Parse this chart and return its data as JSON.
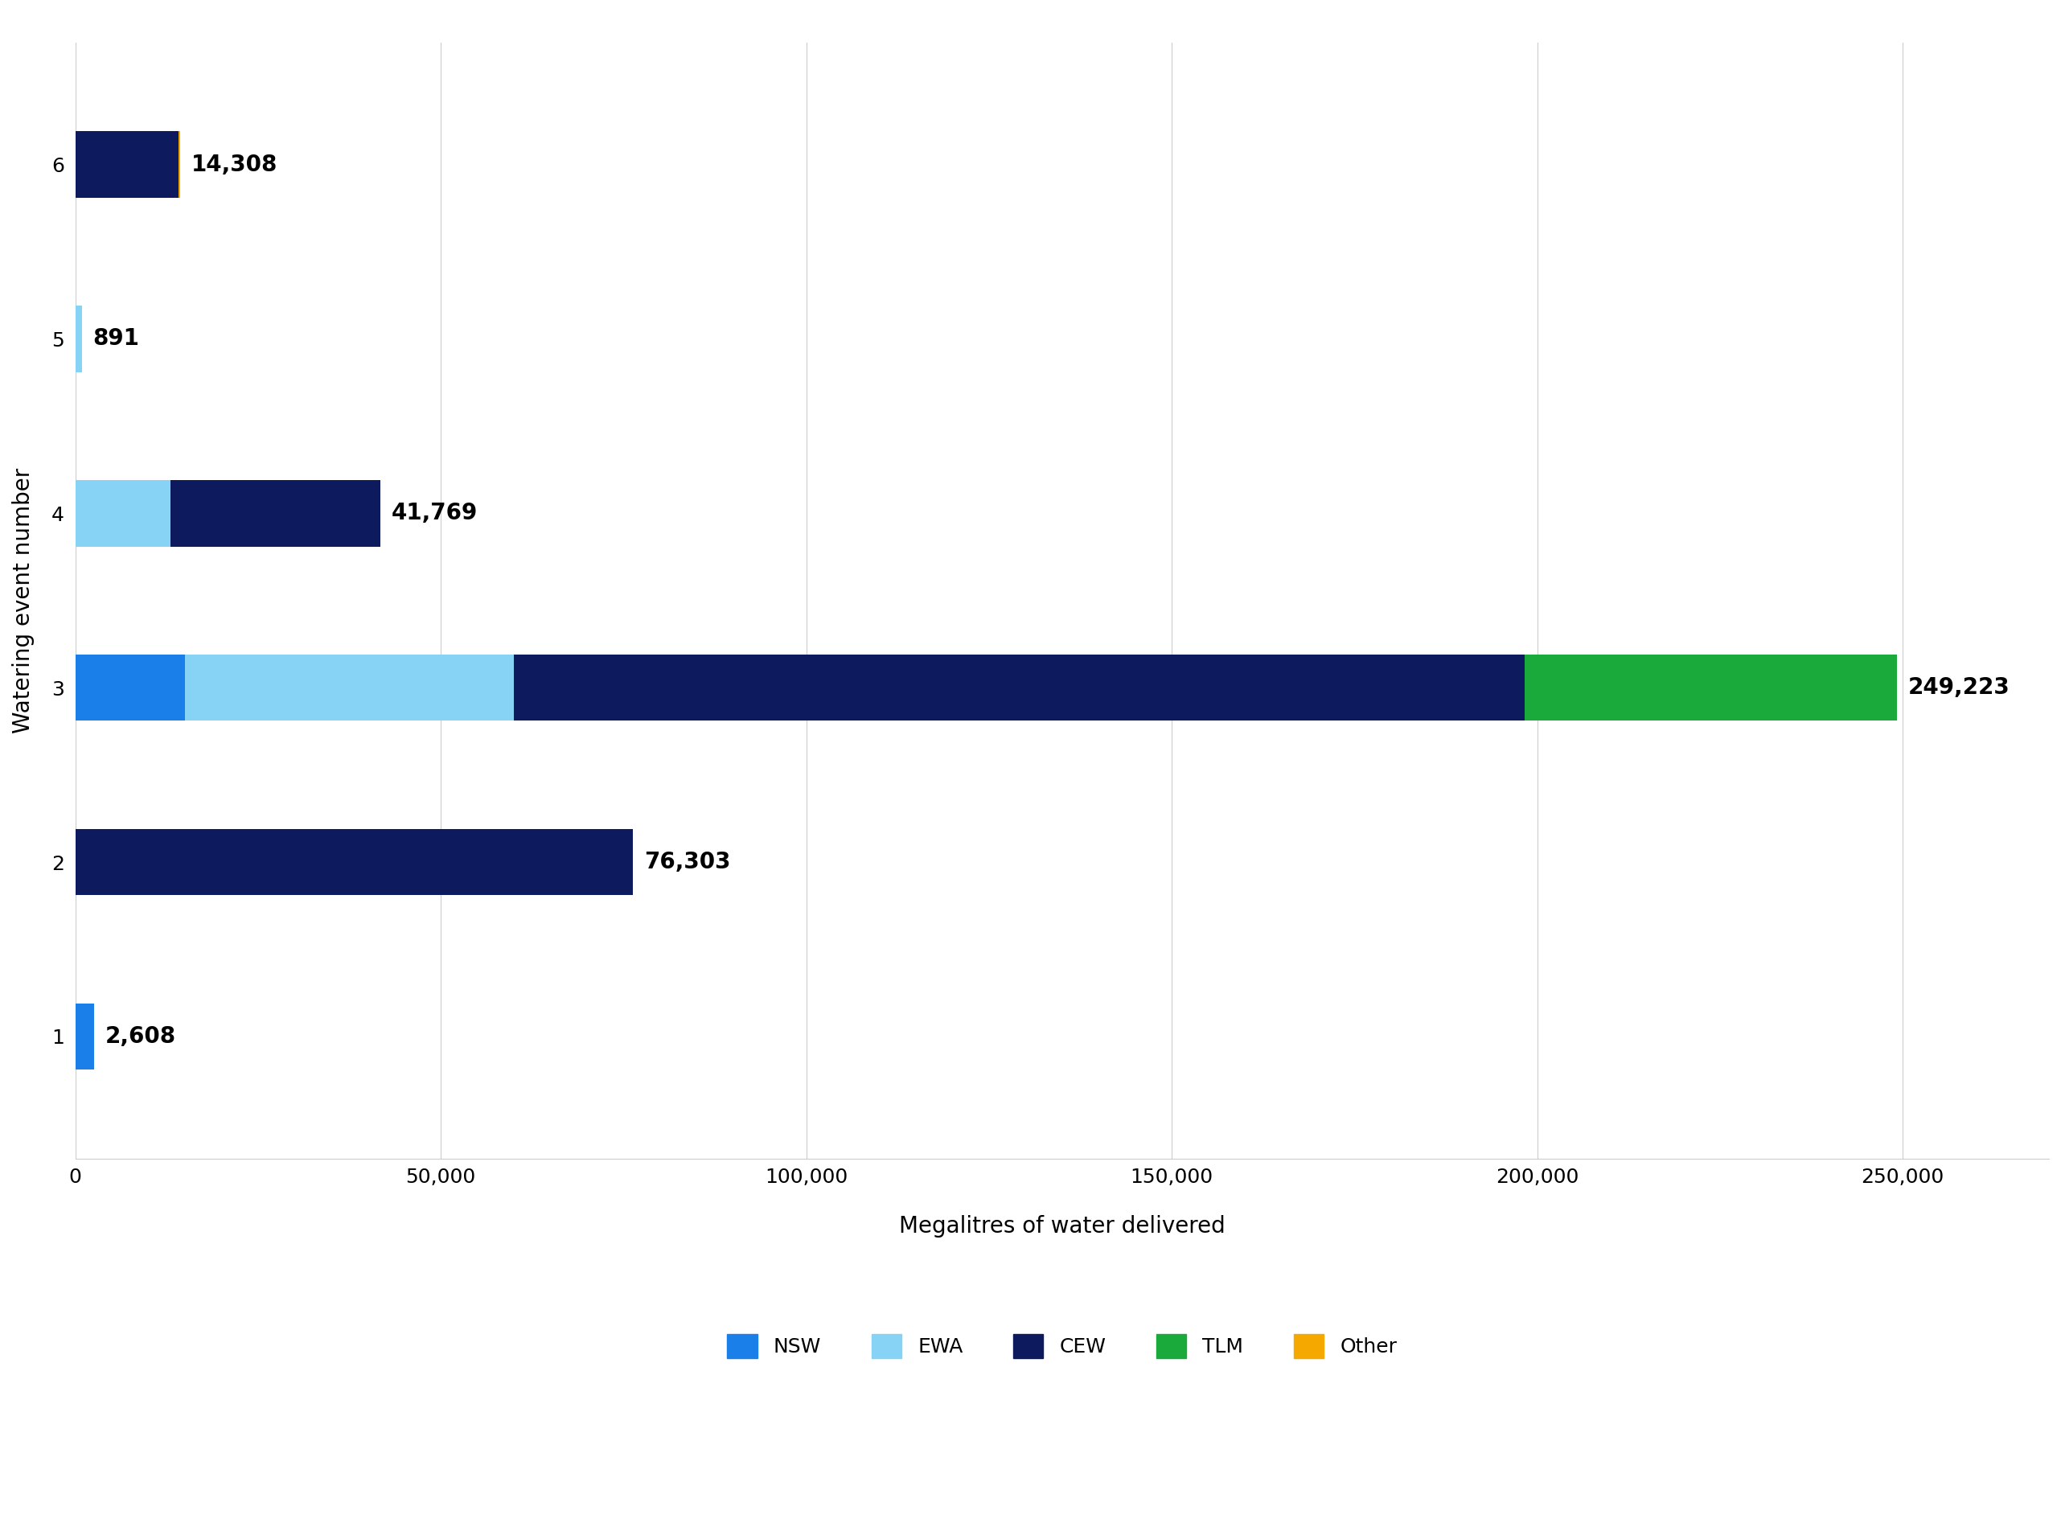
{
  "events": [
    1,
    2,
    3,
    4,
    5,
    6
  ],
  "segments": {
    "NSW": [
      2608,
      0,
      15000,
      0,
      0,
      0
    ],
    "EWA": [
      0,
      0,
      45000,
      13000,
      891,
      0
    ],
    "CEW": [
      0,
      76303,
      138223,
      28769,
      0,
      14108
    ],
    "TLM": [
      0,
      0,
      51000,
      0,
      0,
      0
    ],
    "Other": [
      0,
      0,
      0,
      0,
      0,
      200
    ]
  },
  "totals": [
    2608,
    76303,
    249223,
    41769,
    891,
    14308
  ],
  "colors": {
    "NSW": "#1a7fe8",
    "EWA": "#87d3f5",
    "CEW": "#0d1b5e",
    "TLM": "#1aaa3c",
    "Other": "#f5a800"
  },
  "xlabel": "Megalitres of water delivered",
  "ylabel": "Watering event number",
  "xlim": [
    0,
    270000
  ],
  "xticks": [
    0,
    50000,
    100000,
    150000,
    200000,
    250000
  ],
  "xticklabels": [
    "0",
    "50,000",
    "100,000",
    "150,000",
    "200,000",
    "250,000"
  ],
  "background_color": "#ffffff",
  "label_fontsize": 20,
  "tick_fontsize": 18,
  "legend_fontsize": 18,
  "annotation_fontsize": 20,
  "bar_height": 0.38,
  "ylim": [
    0.3,
    6.7
  ]
}
